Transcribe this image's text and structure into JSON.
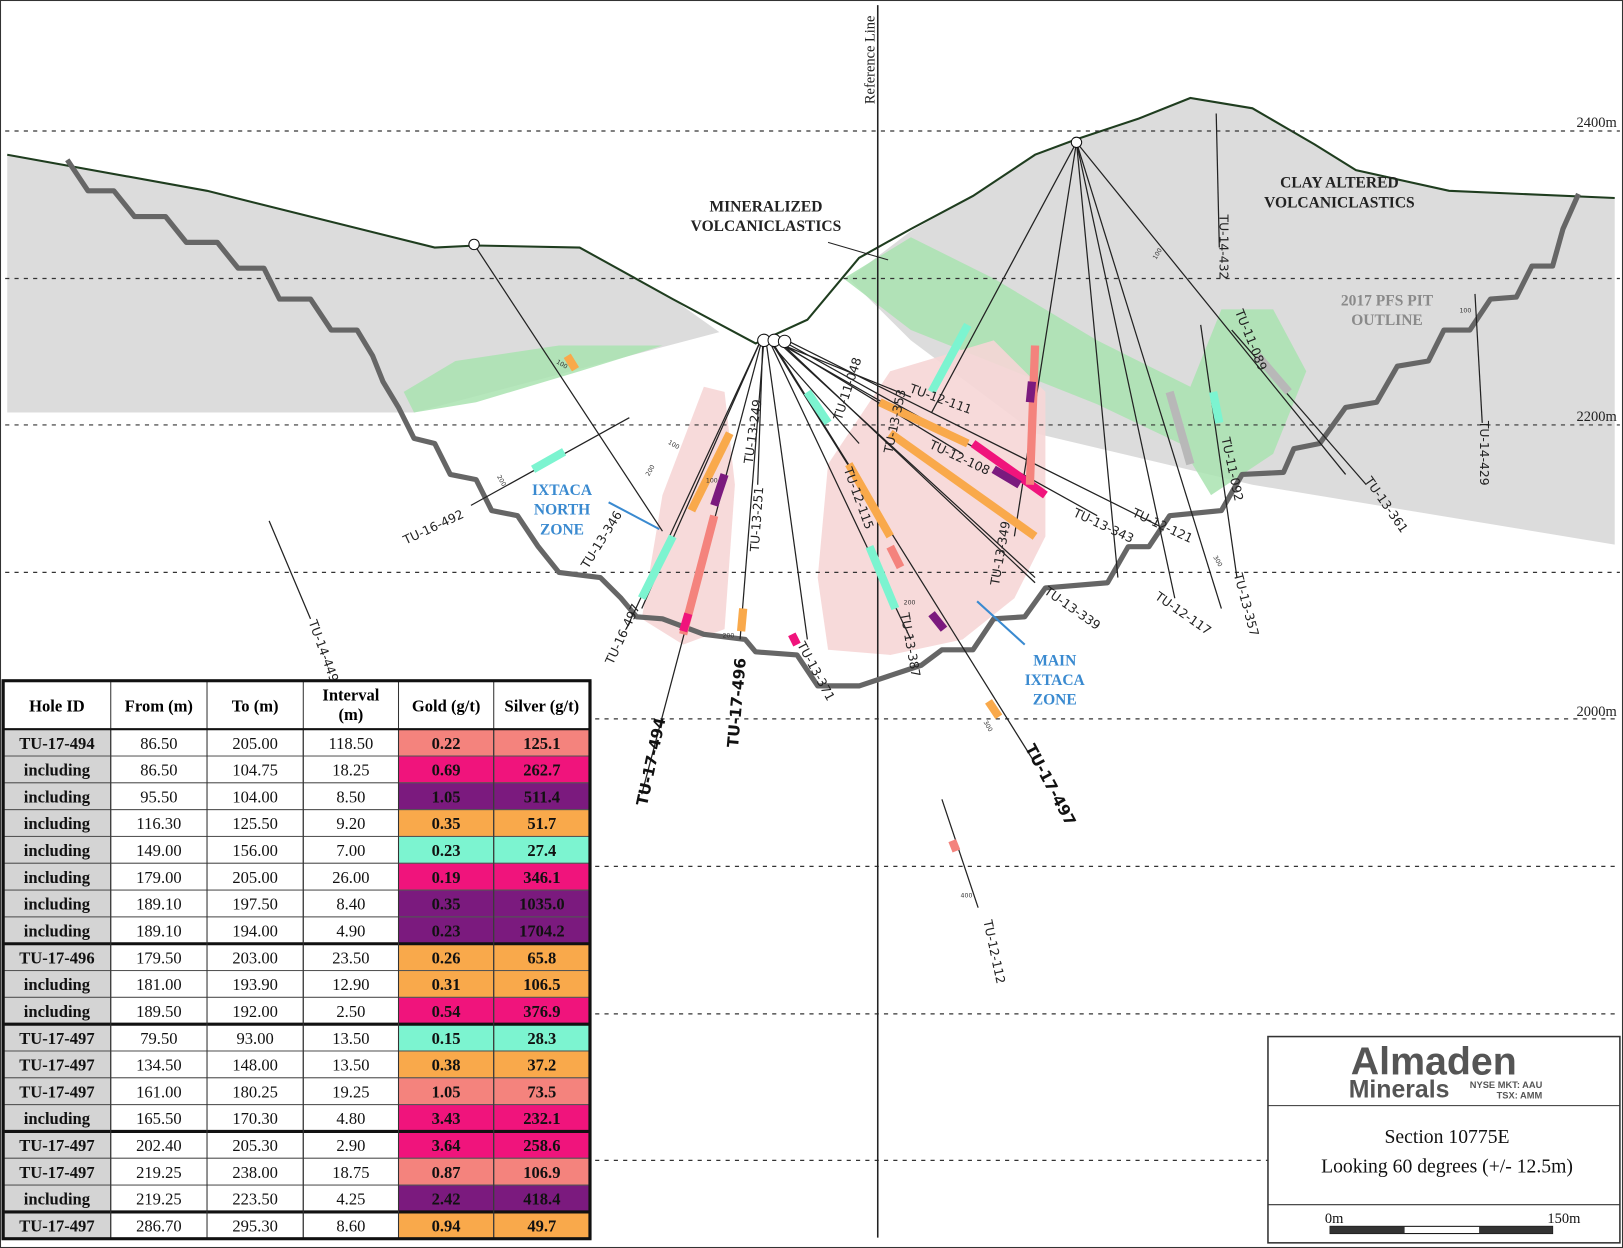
{
  "section": {
    "reference_line": "Reference Line",
    "elevations": [
      "2400m",
      "2200m",
      "2000m"
    ],
    "zones": {
      "mineralized": [
        "MINERALIZED",
        "VOLCANICLASTICS"
      ],
      "clay": [
        "CLAY ALTERED",
        "VOLCANICLASTICS"
      ],
      "pit": [
        "2017 PFS PIT",
        "OUTLINE"
      ],
      "ixtaca_north": [
        "IXTACA",
        "NORTH",
        "ZONE"
      ],
      "main_ixtaca": [
        "MAIN",
        "IXTACA",
        "ZONE"
      ]
    },
    "holes": [
      "TU-16-492",
      "TU-13-346",
      "TU-16-497",
      "TU-13-249",
      "TU-13-251",
      "TU-17-496",
      "TU-17-494",
      "TU-13-371",
      "TU-11-048",
      "TU-12-111",
      "TU-13-353",
      "TU-12-108",
      "TU-12-115",
      "TU-13-387",
      "TU-17-497",
      "TU-13-349",
      "TU-13-339",
      "TU-13-343",
      "TU-12-121",
      "TU-12-117",
      "TU-13-357",
      "TU-11-092",
      "TU-11-089",
      "TU-13-361",
      "TU-14-429",
      "TU-14-432",
      "TU-14-449",
      "TU-12-112"
    ],
    "depth_markers": [
      "100",
      "200",
      "100",
      "200",
      "100",
      "200",
      "300",
      "400",
      "200",
      "300",
      "100",
      "100"
    ]
  },
  "table": {
    "header": [
      "Hole ID",
      "From (m)",
      "To (m)",
      "Interval (m)",
      "Gold (g/t)",
      "Silver (g/t)"
    ],
    "rows": [
      {
        "cells": [
          "TU-17-494",
          "86.50",
          "205.00",
          "118.50",
          "0.22",
          "125.1"
        ],
        "color": "#f4837d"
      },
      {
        "cells": [
          "including",
          "86.50",
          "104.75",
          "18.25",
          "0.69",
          "262.7"
        ],
        "color": "#f0147c"
      },
      {
        "cells": [
          "including",
          "95.50",
          "104.00",
          "8.50",
          "1.05",
          "511.4"
        ],
        "color": "#7b1a7e"
      },
      {
        "cells": [
          "including",
          "116.30",
          "125.50",
          "9.20",
          "0.35",
          "51.7"
        ],
        "color": "#f9a94b"
      },
      {
        "cells": [
          "including",
          "149.00",
          "156.00",
          "7.00",
          "0.23",
          "27.4"
        ],
        "color": "#7cf4d0"
      },
      {
        "cells": [
          "including",
          "179.00",
          "205.00",
          "26.00",
          "0.19",
          "346.1"
        ],
        "color": "#f0147c"
      },
      {
        "cells": [
          "including",
          "189.10",
          "197.50",
          "8.40",
          "0.35",
          "1035.0"
        ],
        "color": "#7b1a7e"
      },
      {
        "cells": [
          "including",
          "189.10",
          "194.00",
          "4.90",
          "0.23",
          "1704.2"
        ],
        "color": "#7b1a7e"
      },
      {
        "cells": [
          "TU-17-496",
          "179.50",
          "203.00",
          "23.50",
          "0.26",
          "65.8"
        ],
        "color": "#f9a94b"
      },
      {
        "cells": [
          "including",
          "181.00",
          "193.90",
          "12.90",
          "0.31",
          "106.5"
        ],
        "color": "#f9a94b"
      },
      {
        "cells": [
          "including",
          "189.50",
          "192.00",
          "2.50",
          "0.54",
          "376.9"
        ],
        "color": "#f0147c"
      },
      {
        "cells": [
          "TU-17-497",
          "79.50",
          "93.00",
          "13.50",
          "0.15",
          "28.3"
        ],
        "color": "#7cf4d0"
      },
      {
        "cells": [
          "TU-17-497",
          "134.50",
          "148.00",
          "13.50",
          "0.38",
          "37.2"
        ],
        "color": "#f9a94b"
      },
      {
        "cells": [
          "TU-17-497",
          "161.00",
          "180.25",
          "19.25",
          "1.05",
          "73.5"
        ],
        "color": "#f4837d"
      },
      {
        "cells": [
          "including",
          "165.50",
          "170.30",
          "4.80",
          "3.43",
          "232.1"
        ],
        "color": "#f0147c"
      },
      {
        "cells": [
          "TU-17-497",
          "202.40",
          "205.30",
          "2.90",
          "3.64",
          "258.6"
        ],
        "color": "#f0147c"
      },
      {
        "cells": [
          "TU-17-497",
          "219.25",
          "238.00",
          "18.75",
          "0.87",
          "106.9"
        ],
        "color": "#f4837d"
      },
      {
        "cells": [
          "including",
          "219.25",
          "223.50",
          "4.25",
          "2.42",
          "418.4"
        ],
        "color": "#7b1a7e"
      },
      {
        "cells": [
          "TU-17-497",
          "286.70",
          "295.30",
          "8.60",
          "0.94",
          "49.7"
        ],
        "color": "#f9a94b"
      }
    ]
  },
  "legend": {
    "logo": [
      "Almaden",
      "Minerals",
      "NYSE MKT: AAU",
      "TSX: AMM"
    ],
    "section": "Section 10775E",
    "looking": "Looking 60 degrees (+/- 12.5m)",
    "scale": [
      "0m",
      "150m"
    ]
  }
}
